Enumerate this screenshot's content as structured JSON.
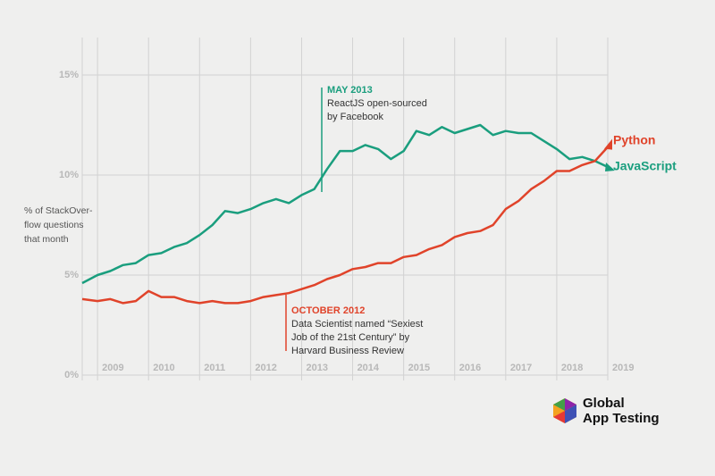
{
  "chart_data": {
    "type": "line",
    "ylabel": [
      "% of StackOver-",
      "flow questions",
      "that month"
    ],
    "xlim": [
      2008.7,
      2019
    ],
    "ylim": [
      0,
      16
    ],
    "xticks": [
      2009,
      2010,
      2011,
      2012,
      2013,
      2014,
      2015,
      2016,
      2017,
      2018,
      2019
    ],
    "yticks": [
      {
        "value": 0,
        "label": "0%"
      },
      {
        "value": 5,
        "label": "5%"
      },
      {
        "value": 10,
        "label": "10%"
      },
      {
        "value": 15,
        "label": "15%"
      }
    ],
    "grid": true,
    "series": [
      {
        "name": "JavaScript",
        "color": "#1a9e7e",
        "x": [
          2008.7,
          2009,
          2009.25,
          2009.5,
          2009.75,
          2010,
          2010.25,
          2010.5,
          2010.75,
          2011,
          2011.25,
          2011.5,
          2011.75,
          2012,
          2012.25,
          2012.5,
          2012.75,
          2013,
          2013.25,
          2013.5,
          2013.75,
          2014,
          2014.25,
          2014.5,
          2014.75,
          2015,
          2015.25,
          2015.5,
          2015.75,
          2016,
          2016.25,
          2016.5,
          2016.75,
          2017,
          2017.25,
          2017.5,
          2017.75,
          2018,
          2018.25,
          2018.5,
          2018.75,
          2019
        ],
        "values": [
          4.6,
          5.0,
          5.2,
          5.5,
          5.6,
          6.0,
          6.1,
          6.4,
          6.6,
          7.0,
          7.5,
          8.2,
          8.1,
          8.3,
          8.6,
          8.8,
          8.6,
          9.0,
          9.3,
          10.3,
          11.2,
          11.2,
          11.5,
          11.3,
          10.8,
          11.2,
          12.2,
          12.0,
          12.4,
          12.1,
          12.3,
          12.5,
          12.0,
          12.2,
          12.1,
          12.1,
          11.7,
          11.3,
          10.8,
          10.9,
          10.7,
          10.4
        ]
      },
      {
        "name": "Python",
        "color": "#e0432a",
        "x": [
          2008.7,
          2009,
          2009.25,
          2009.5,
          2009.75,
          2010,
          2010.25,
          2010.5,
          2010.75,
          2011,
          2011.25,
          2011.5,
          2011.75,
          2012,
          2012.25,
          2012.5,
          2012.75,
          2013,
          2013.25,
          2013.5,
          2013.75,
          2014,
          2014.25,
          2014.5,
          2014.75,
          2015,
          2015.25,
          2015.5,
          2015.75,
          2016,
          2016.25,
          2016.5,
          2016.75,
          2017,
          2017.25,
          2017.5,
          2017.75,
          2018,
          2018.25,
          2018.5,
          2018.75,
          2019
        ],
        "values": [
          3.8,
          3.7,
          3.8,
          3.6,
          3.7,
          4.2,
          3.9,
          3.9,
          3.7,
          3.6,
          3.7,
          3.6,
          3.6,
          3.7,
          3.9,
          4.0,
          4.1,
          4.3,
          4.5,
          4.8,
          5.0,
          5.3,
          5.4,
          5.6,
          5.6,
          5.9,
          6.0,
          6.3,
          6.5,
          6.9,
          7.1,
          7.2,
          7.5,
          8.3,
          8.7,
          9.3,
          9.7,
          10.2,
          10.2,
          10.5,
          10.7,
          11.4
        ]
      }
    ],
    "annotations": [
      {
        "head": "MAY 2013",
        "lines": [
          "ReactJS open-sourced",
          "by Facebook"
        ]
      },
      {
        "head": "OCTOBER 2012",
        "lines": [
          "Data Scientist named “Sexiest",
          "Job of the 21st Century” by",
          "Harvard Business Review"
        ]
      }
    ]
  },
  "logo": {
    "lines": [
      "Global",
      "App Testing"
    ]
  }
}
